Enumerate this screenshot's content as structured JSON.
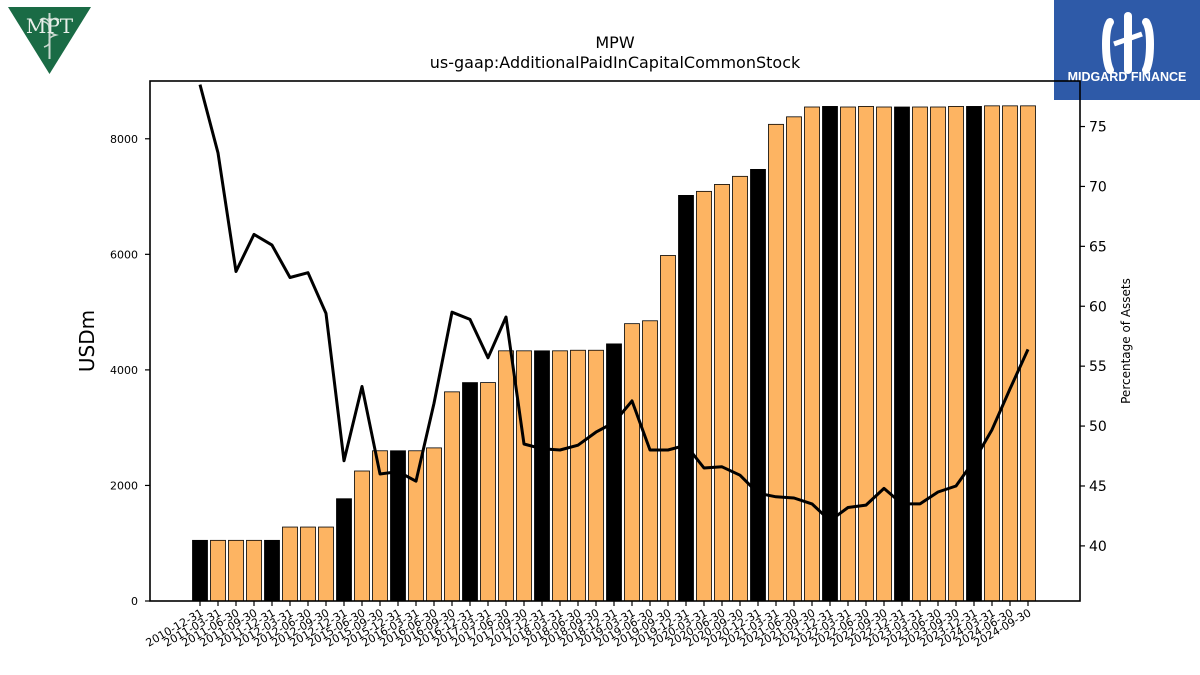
{
  "logos": {
    "left": {
      "text": "MPT",
      "color": "#1a6b45"
    },
    "right": {
      "text": "MIDGARD FINANCE",
      "color": "#2e5aa8"
    }
  },
  "colors": {
    "bar_normal": "#fdb462",
    "bar_highlight": "#000000",
    "line": "#000000"
  },
  "chart_data": {
    "type": "bar",
    "title": "MPW",
    "subtitle": "us-gaap:AdditionalPaidInCapitalCommonStock",
    "ylabel": "USDm",
    "y2label": "Percentage of Assets",
    "ylim": [
      0,
      9000
    ],
    "y2lim": [
      35.4,
      78.8
    ],
    "yticks": [
      0,
      2000,
      4000,
      6000,
      8000
    ],
    "y2ticks": [
      40,
      45,
      50,
      55,
      60,
      65,
      70,
      75
    ],
    "grid": false,
    "categories": [
      "2010-12-31",
      "2011-03-31",
      "2011-06-30",
      "2011-09-30",
      "2011-12-31",
      "2012-03-31",
      "2012-06-30",
      "2012-09-30",
      "2012-12-31",
      "2015-06-30",
      "2015-09-30",
      "2015-12-31",
      "2016-03-31",
      "2016-06-30",
      "2016-09-30",
      "2016-12-31",
      "2017-03-31",
      "2017-06-30",
      "2017-09-30",
      "2017-12-31",
      "2018-03-31",
      "2018-06-30",
      "2018-09-30",
      "2018-12-31",
      "2019-03-31",
      "2019-06-30",
      "2019-09-30",
      "2019-12-31",
      "2020-03-31",
      "2020-06-30",
      "2020-09-30",
      "2020-12-31",
      "2021-03-31",
      "2021-06-30",
      "2021-09-30",
      "2021-12-31",
      "2022-03-31",
      "2022-06-30",
      "2022-09-30",
      "2022-12-31",
      "2023-03-31",
      "2023-06-30",
      "2023-09-30",
      "2023-12-31",
      "2024-03-31",
      "2024-06-30",
      "2024-09-30"
    ],
    "series": [
      {
        "kind": "bar",
        "axis": "left",
        "values": [
          1050,
          1050,
          1050,
          1050,
          1050,
          1280,
          1280,
          1280,
          1770,
          2250,
          2600,
          2600,
          2600,
          2650,
          3620,
          3780,
          3780,
          4330,
          4330,
          4330,
          4330,
          4340,
          4340,
          4450,
          4800,
          4850,
          5980,
          7020,
          7090,
          7210,
          7350,
          7470,
          8250,
          8380,
          8550,
          8560,
          8550,
          8560,
          8550,
          8550,
          8550,
          8550,
          8560,
          8560,
          8570,
          8570,
          8570
        ],
        "highlight": [
          true,
          false,
          false,
          false,
          true,
          false,
          false,
          false,
          true,
          false,
          false,
          true,
          false,
          false,
          false,
          true,
          false,
          false,
          false,
          true,
          false,
          false,
          false,
          true,
          false,
          false,
          false,
          true,
          false,
          false,
          false,
          true,
          false,
          false,
          false,
          true,
          false,
          false,
          false,
          true,
          false,
          false,
          false,
          true,
          false,
          false,
          false
        ]
      },
      {
        "kind": "line",
        "axis": "right",
        "values": [
          78.5,
          72.8,
          62.9,
          66.0,
          65.1,
          62.4,
          62.8,
          59.4,
          47.1,
          53.3,
          46.0,
          46.2,
          45.4,
          51.9,
          59.5,
          58.9,
          55.7,
          59.1,
          48.5,
          48.1,
          48.0,
          48.4,
          49.5,
          50.3,
          52.1,
          48.0,
          48.0,
          48.4,
          46.5,
          46.6,
          45.9,
          44.4,
          44.1,
          44.0,
          43.5,
          42.1,
          43.2,
          43.4,
          44.8,
          43.5,
          43.5,
          44.5,
          45.0,
          47.1,
          49.7,
          53.1,
          56.4
        ]
      }
    ]
  }
}
